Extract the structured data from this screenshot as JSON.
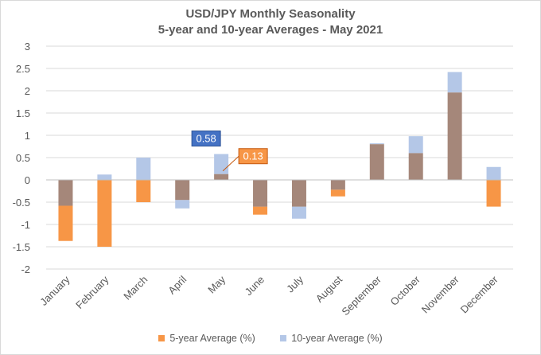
{
  "chart_data": {
    "type": "bar",
    "title": "USD/JPY Monthly Seasonality",
    "subtitle": "5-year and 10-year Averages - May 2021",
    "categories": [
      "January",
      "February",
      "March",
      "April",
      "May",
      "June",
      "July",
      "August",
      "September",
      "October",
      "November",
      "December"
    ],
    "series": [
      {
        "name": "5-year Average (%)",
        "color": "#f79646",
        "values": [
          -1.37,
          -1.5,
          -0.5,
          -0.45,
          0.13,
          -0.78,
          -0.6,
          -0.37,
          0.8,
          0.6,
          1.96,
          -0.6
        ]
      },
      {
        "name": "10-year Average (%)",
        "color": "#b4c7e7",
        "values": [
          -0.58,
          0.12,
          0.5,
          -0.64,
          0.58,
          -0.6,
          -0.87,
          -0.22,
          0.82,
          0.98,
          2.42,
          0.29
        ]
      }
    ],
    "overlap_color": "#a5877a",
    "ylim": [
      -2,
      3
    ],
    "yticks": [
      "-2",
      "-1.5",
      "-1",
      "-0.5",
      "0",
      "0.5",
      "1",
      "1.5",
      "2",
      "2.5",
      "3"
    ],
    "grid": true,
    "legend_position": "bottom",
    "annotations": [
      {
        "text": "0.58",
        "series": "10-year Average (%)",
        "category": "May",
        "fill": "#4472c4",
        "stroke": "#2f5597",
        "text_color": "#ffffff"
      },
      {
        "text": "0.13",
        "series": "5-year Average (%)",
        "category": "May",
        "fill": "#f79646",
        "stroke": "#c55a11",
        "text_color": "#ffffff"
      }
    ]
  }
}
